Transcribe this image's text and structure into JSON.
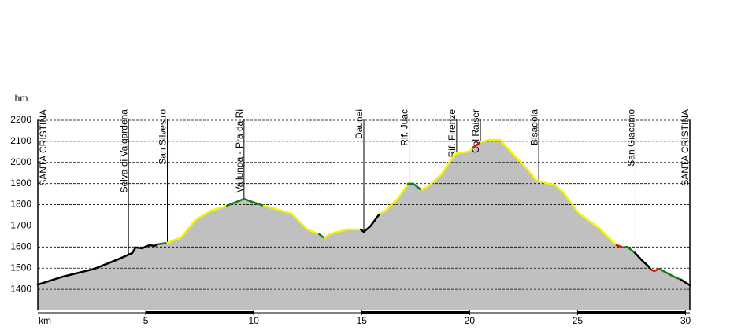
{
  "chart_data": {
    "type": "elevation-profile",
    "y_unit_label": "hm",
    "x_unit_label": "km",
    "xlim": [
      0,
      30.2
    ],
    "ylim": [
      1300,
      2200
    ],
    "xticks": [
      5,
      10,
      15,
      20,
      25,
      30
    ],
    "yticks": [
      1400,
      1500,
      1600,
      1700,
      1800,
      1900,
      2000,
      2100,
      2200
    ],
    "grid": true,
    "fill_color": "#c0c0c0",
    "waypoints": [
      {
        "label": "SANTA CRISTINA",
        "km": 0
      },
      {
        "label": "Selva di Valgardena",
        "km": 4.2
      },
      {
        "label": "San Silvestro",
        "km": 6.0
      },
      {
        "label": "Vallunga - Pra da Ri",
        "km": 9.55
      },
      {
        "label": "Daunei",
        "km": 15.1
      },
      {
        "label": "Rif. Juac",
        "km": 17.2
      },
      {
        "label": "Rif. Firenze",
        "km": 19.4
      },
      {
        "label": "Col Raiser",
        "km": 20.5
      },
      {
        "label": "Bisadoia",
        "km": 23.2
      },
      {
        "label": "San Giacomo",
        "km": 27.7
      },
      {
        "label": "SANTA CRISTINA",
        "km": 30.2
      }
    ],
    "series": [
      {
        "color": "#000000",
        "x": [
          0,
          1.17,
          2.63,
          3.72,
          4.38,
          4.53,
          4.82,
          5.18,
          5.4,
          5.55
        ],
        "values": [
          1422,
          1460,
          1497,
          1542,
          1572,
          1598,
          1594,
          1609,
          1605,
          1613
        ]
      },
      {
        "color": "#1a7a1a",
        "x": [
          5.55,
          6.0
        ],
        "values": [
          1613,
          1620
        ]
      },
      {
        "color": "#f5f500",
        "x": [
          6.0,
          6.64,
          7.3,
          8.03,
          8.76
        ],
        "values": [
          1620,
          1646,
          1728,
          1772,
          1795
        ]
      },
      {
        "color": "#1a7a1a",
        "x": [
          8.76,
          9.56,
          9.93,
          10.47
        ],
        "values": [
          1795,
          1828,
          1813,
          1795
        ]
      },
      {
        "color": "#f5f500",
        "x": [
          10.47,
          11.0,
          11.75,
          12.48,
          12.85,
          13.03
        ],
        "values": [
          1795,
          1780,
          1758,
          1683,
          1668,
          1661
        ]
      },
      {
        "color": "#1a7a1a",
        "x": [
          13.03,
          13.28
        ],
        "values": [
          1661,
          1642
        ]
      },
      {
        "color": "#f5f500",
        "x": [
          13.28,
          13.5,
          14.3,
          14.96
        ],
        "values": [
          1642,
          1661,
          1683,
          1683
        ]
      },
      {
        "color": "#000000",
        "x": [
          14.96,
          15.1,
          15.4,
          15.84
        ],
        "values": [
          1683,
          1672,
          1698,
          1758
        ]
      },
      {
        "color": "#f5f500",
        "x": [
          15.84,
          16.1,
          16.7,
          17.15
        ],
        "values": [
          1758,
          1772,
          1832,
          1899
        ]
      },
      {
        "color": "#1a7a1a",
        "x": [
          17.15,
          17.4,
          17.77
        ],
        "values": [
          1899,
          1899,
          1869
        ]
      },
      {
        "color": "#f5f500",
        "x": [
          17.77,
          18.14,
          18.7,
          19.1,
          19.4,
          19.96,
          20.15
        ],
        "values": [
          1869,
          1892,
          1944,
          2007,
          2044,
          2051,
          2070
        ]
      },
      {
        "color": "#d01010",
        "x": [
          20.15,
          20.5
        ],
        "values": [
          2070,
          2096
        ]
      },
      {
        "color": "#f5f500",
        "x": [
          20.5,
          20.9,
          21.4,
          22.0,
          22.7,
          23.1,
          23.97,
          24.34,
          25.07,
          25.99,
          26.53,
          26.8
        ],
        "values": [
          2096,
          2107,
          2107,
          2040,
          1966,
          1914,
          1892,
          1858,
          1758,
          1691,
          1635,
          1609
        ]
      },
      {
        "color": "#d01010",
        "x": [
          26.8,
          27.1
        ],
        "values": [
          1609,
          1598
        ]
      },
      {
        "color": "#1a7a1a",
        "x": [
          27.1,
          27.3,
          27.66
        ],
        "values": [
          1598,
          1601,
          1572
        ]
      },
      {
        "color": "#000000",
        "x": [
          27.66,
          28.0,
          28.25,
          28.4
        ],
        "values": [
          1572,
          1535,
          1512,
          1494
        ]
      },
      {
        "color": "#d01010",
        "x": [
          28.4,
          28.54,
          28.8
        ],
        "values": [
          1494,
          1486,
          1497
        ]
      },
      {
        "color": "#1a7a1a",
        "x": [
          28.8,
          28.98,
          29.45,
          29.8
        ],
        "values": [
          1497,
          1486,
          1460,
          1445
        ]
      },
      {
        "color": "#000000",
        "x": [
          29.8,
          30.2
        ],
        "values": [
          1445,
          1419
        ]
      }
    ]
  }
}
